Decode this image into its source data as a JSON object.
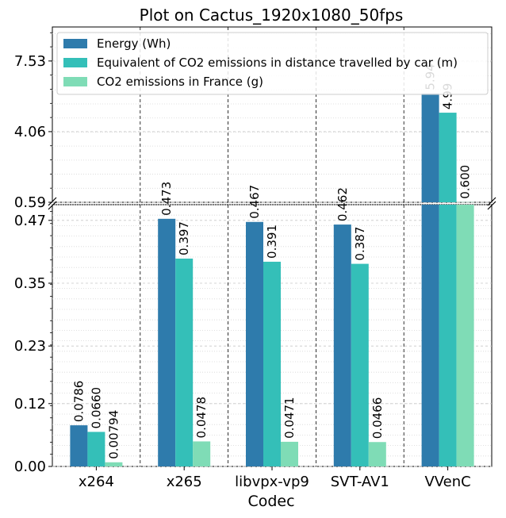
{
  "chart_data": {
    "type": "bar",
    "title": "Plot on Cactus_1920x1080_50fps",
    "xlabel": "Codec",
    "ylabel": "",
    "categories": [
      "x264",
      "x265",
      "libvpx-vp9",
      "SVT-AV1",
      "VVenC"
    ],
    "series": [
      {
        "name": "Energy (Wh)",
        "color": "#2e7bac",
        "values": [
          0.0786,
          0.473,
          0.467,
          0.462,
          5.94
        ],
        "labels": [
          "0.0786",
          "0.473",
          "0.467",
          "0.462",
          "5.94"
        ]
      },
      {
        "name": "Equivalent of CO2 emissions in distance travelled by car (m)",
        "color": "#34bfb8",
        "values": [
          0.066,
          0.397,
          0.391,
          0.387,
          4.99
        ],
        "labels": [
          "0.0660",
          "0.397",
          "0.391",
          "0.387",
          "4.99"
        ]
      },
      {
        "name": "CO2 emissions in France (g)",
        "color": "#7fdcb6",
        "values": [
          0.00794,
          0.0478,
          0.0471,
          0.0466,
          0.6
        ],
        "labels": [
          "0.00794",
          "0.0478",
          "0.0471",
          "0.0466",
          "0.600"
        ]
      }
    ],
    "broken_axis": true,
    "lower_ylim": [
      0,
      0.5
    ],
    "upper_ylim": [
      0.59,
      9.2
    ],
    "lower_yticks": [
      "0.00",
      "0.12",
      "0.23",
      "0.35",
      "0.47"
    ],
    "upper_yticks": [
      "0.59",
      "4.06",
      "7.53"
    ],
    "grid": true,
    "legend_position": "upper-left"
  }
}
